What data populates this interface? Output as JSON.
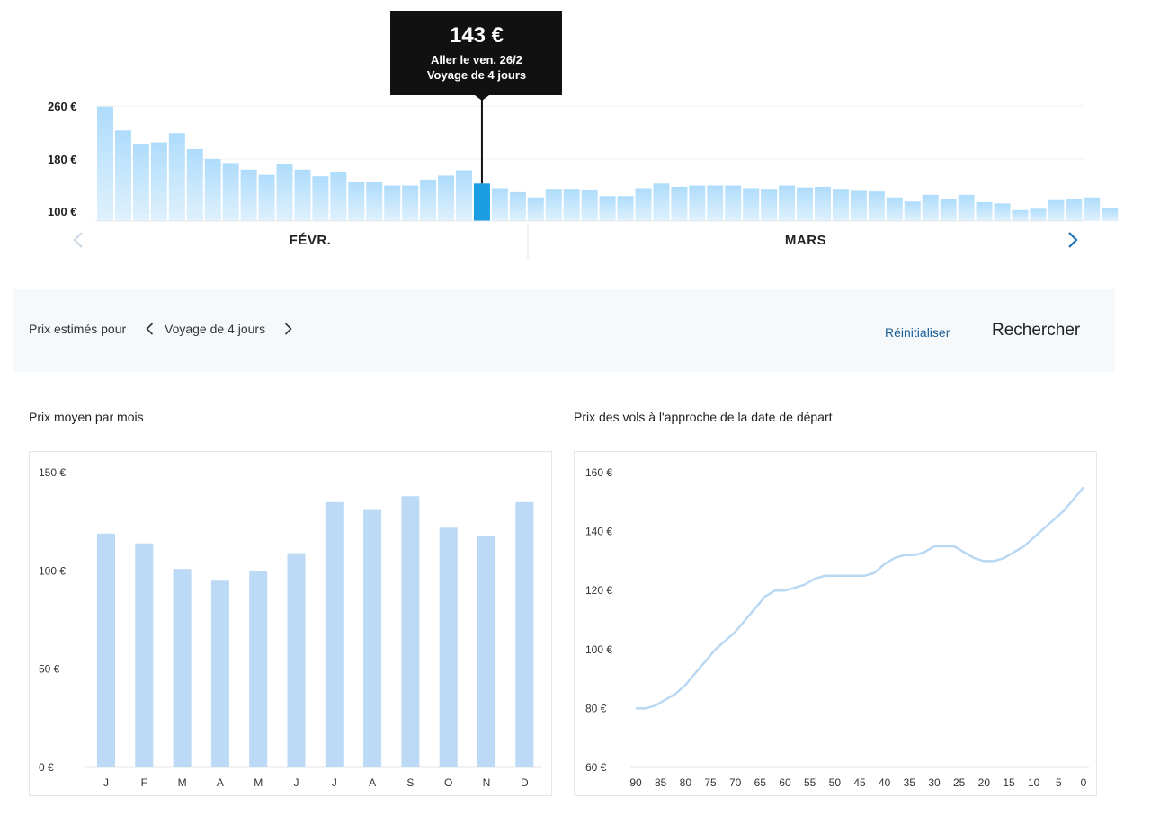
{
  "daily_chart": {
    "y_ticks": [
      "260 €",
      "180 €",
      "100 €"
    ],
    "months": [
      "FÉVR.",
      "MARS"
    ],
    "tooltip": {
      "price": "143 €",
      "line1": "Aller le ven. 26/2",
      "line2": "Voyage de 4 jours"
    },
    "colors": {
      "bar": "#aedcfb",
      "bar_selected": "#1b9de2",
      "tooltip_bg": "#111111"
    }
  },
  "filter_bar": {
    "estimate_label": "Prix estimés pour",
    "trip_label": "Voyage de 4 jours",
    "reset_label": "Réinitialiser",
    "search_label": "Rechercher"
  },
  "monthly_section": {
    "title": "Prix moyen par mois"
  },
  "approach_section": {
    "title": "Prix des vols à l'approche de la date de départ"
  },
  "chart_data": [
    {
      "type": "bar",
      "ylim": [
        80,
        270
      ],
      "y_ticks": [
        100,
        180,
        260
      ],
      "x_labels": [
        "FÉVR.",
        "MARS"
      ],
      "selected_index": 21,
      "values": [
        259,
        223,
        203,
        205,
        219,
        195,
        180,
        174,
        164,
        156,
        172,
        164,
        154,
        161,
        146,
        146,
        140,
        140,
        149,
        155,
        163,
        143,
        136,
        130,
        122,
        135,
        135,
        134,
        124,
        124,
        136,
        143,
        138,
        140,
        140,
        140,
        136,
        135,
        140,
        137,
        138,
        135,
        132,
        131,
        122,
        116,
        126,
        119,
        126,
        115,
        113,
        103,
        105,
        118,
        120,
        122,
        106
      ]
    },
    {
      "type": "bar",
      "categories": [
        "J",
        "F",
        "M",
        "A",
        "M",
        "J",
        "J",
        "A",
        "S",
        "O",
        "N",
        "D"
      ],
      "values": [
        119,
        114,
        101,
        95,
        100,
        109,
        135,
        131,
        138,
        122,
        118,
        135
      ],
      "ylim": [
        0,
        150
      ],
      "y_ticks": [
        "0 €",
        "50 €",
        "100 €",
        "150 €"
      ]
    },
    {
      "type": "line",
      "x": [
        90,
        88,
        86,
        84,
        82,
        80,
        78,
        76,
        74,
        72,
        70,
        68,
        66,
        64,
        62,
        60,
        58,
        56,
        54,
        52,
        50,
        48,
        46,
        44,
        42,
        40,
        38,
        36,
        34,
        32,
        30,
        28,
        26,
        24,
        22,
        20,
        18,
        16,
        14,
        12,
        10,
        8,
        6,
        4,
        2,
        0
      ],
      "y": [
        80,
        80,
        81,
        83,
        85,
        88,
        92,
        96,
        100,
        103,
        106,
        110,
        114,
        118,
        120,
        120,
        121,
        122,
        124,
        125,
        125,
        125,
        125,
        125,
        126,
        129,
        131,
        132,
        132,
        133,
        135,
        135,
        135,
        133,
        131,
        130,
        130,
        131,
        133,
        135,
        138,
        141,
        144,
        147,
        151,
        155
      ],
      "xlim": [
        90,
        0
      ],
      "ylim": [
        60,
        160
      ],
      "x_ticks": [
        "90",
        "85",
        "80",
        "75",
        "70",
        "65",
        "60",
        "55",
        "50",
        "45",
        "40",
        "35",
        "30",
        "25",
        "20",
        "15",
        "10",
        "5",
        "0"
      ],
      "y_ticks": [
        "60 €",
        "80 €",
        "100 €",
        "120 €",
        "140 €",
        "160 €"
      ]
    }
  ]
}
